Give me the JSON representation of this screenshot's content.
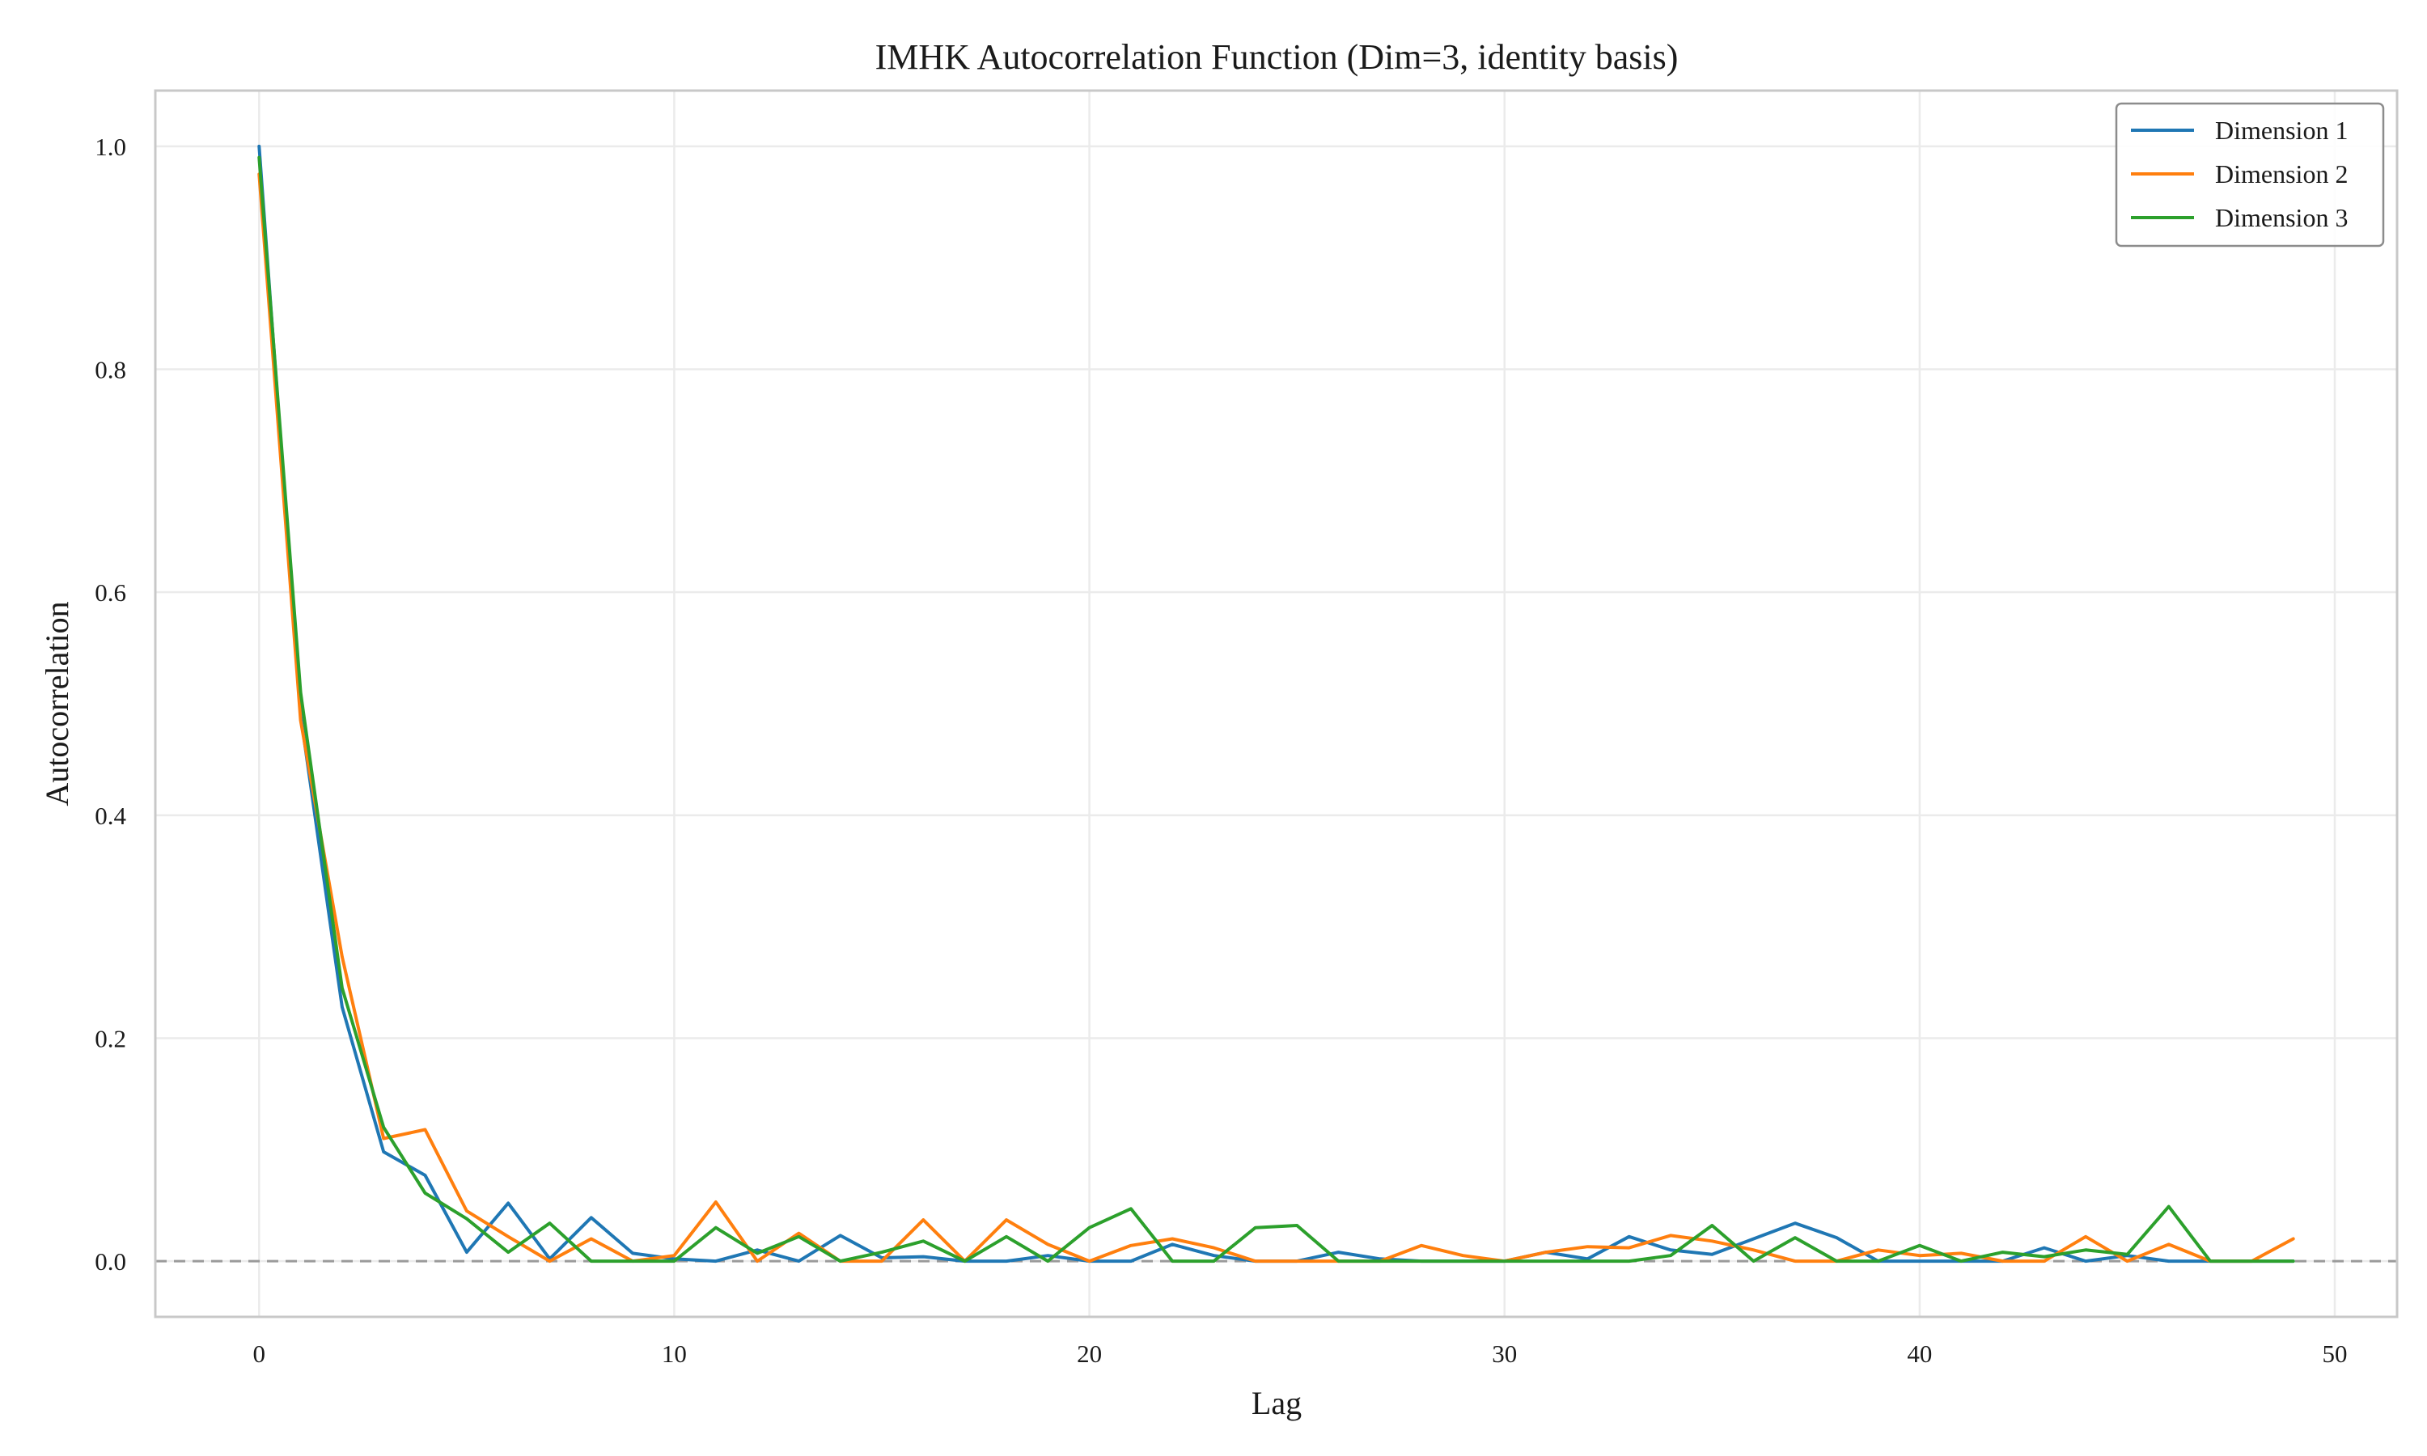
{
  "chart_data": {
    "type": "line",
    "title": "IMHK Autocorrelation Function (Dim=3, identity basis)",
    "xlabel": "Lag",
    "ylabel": "Autocorrelation",
    "xlim": [
      -2.5,
      51.5
    ],
    "ylim": [
      -0.05,
      1.05
    ],
    "xticks": [
      0,
      10,
      20,
      30,
      40,
      50
    ],
    "yticks": [
      0.0,
      0.2,
      0.4,
      0.6,
      0.8,
      1.0
    ],
    "xtick_labels": [
      "0",
      "10",
      "20",
      "30",
      "40",
      "50"
    ],
    "ytick_labels": [
      "0.0",
      "0.2",
      "0.4",
      "0.6",
      "0.8",
      "1.0"
    ],
    "grid": true,
    "legend_position": "top-right",
    "reference_line": {
      "y": 0.0,
      "style": "dashed",
      "color": "#999999"
    },
    "x": [
      0,
      1,
      2,
      3,
      4,
      5,
      6,
      7,
      8,
      9,
      10,
      11,
      12,
      13,
      14,
      15,
      16,
      17,
      18,
      19,
      20,
      21,
      22,
      23,
      24,
      25,
      26,
      27,
      28,
      29,
      30,
      31,
      32,
      33,
      34,
      35,
      36,
      37,
      38,
      39,
      40,
      41,
      42,
      43,
      44,
      45,
      46,
      47,
      48,
      49
    ],
    "series": [
      {
        "name": "Dimension 1",
        "color": "#1f77b4",
        "values": [
          1.0,
          0.49,
          0.228,
          0.098,
          0.077,
          0.008,
          0.052,
          0.002,
          0.039,
          0.007,
          0.002,
          0.0,
          0.01,
          0.0,
          0.023,
          0.003,
          0.004,
          0.0,
          0.0,
          0.005,
          0.0,
          0.0,
          0.015,
          0.005,
          0.0,
          0.0,
          0.008,
          0.002,
          0.0,
          0.0,
          0.0,
          0.008,
          0.002,
          0.022,
          0.01,
          0.006,
          0.02,
          0.034,
          0.021,
          0.0,
          0.0,
          0.0,
          0.0,
          0.012,
          0.0,
          0.005,
          0.0,
          0.0,
          0.0,
          0.0
        ]
      },
      {
        "name": "Dimension 2",
        "color": "#ff7f0e",
        "values": [
          0.975,
          0.485,
          0.273,
          0.11,
          0.118,
          0.045,
          0.022,
          0.0,
          0.02,
          0.0,
          0.005,
          0.053,
          0.0,
          0.025,
          0.0,
          0.0,
          0.037,
          0.0,
          0.037,
          0.015,
          0.0,
          0.014,
          0.02,
          0.012,
          0.0,
          0.0,
          0.0,
          0.0,
          0.014,
          0.005,
          0.0,
          0.008,
          0.013,
          0.012,
          0.023,
          0.018,
          0.01,
          0.0,
          0.0,
          0.01,
          0.005,
          0.007,
          0.0,
          0.0,
          0.022,
          0.0,
          0.015,
          0.0,
          0.0,
          0.02
        ]
      },
      {
        "name": "Dimension 3",
        "color": "#2ca02c",
        "values": [
          0.99,
          0.51,
          0.245,
          0.12,
          0.061,
          0.038,
          0.008,
          0.034,
          0.0,
          0.0,
          0.0,
          0.03,
          0.007,
          0.022,
          0.0,
          0.008,
          0.018,
          0.0,
          0.022,
          0.0,
          0.03,
          0.047,
          0.0,
          0.0,
          0.03,
          0.032,
          0.0,
          0.0,
          0.0,
          0.0,
          0.0,
          0.0,
          0.0,
          0.0,
          0.005,
          0.032,
          0.0,
          0.021,
          0.0,
          0.0,
          0.014,
          0.0,
          0.008,
          0.004,
          0.01,
          0.006,
          0.049,
          0.0,
          0.0,
          0.0
        ]
      }
    ]
  }
}
